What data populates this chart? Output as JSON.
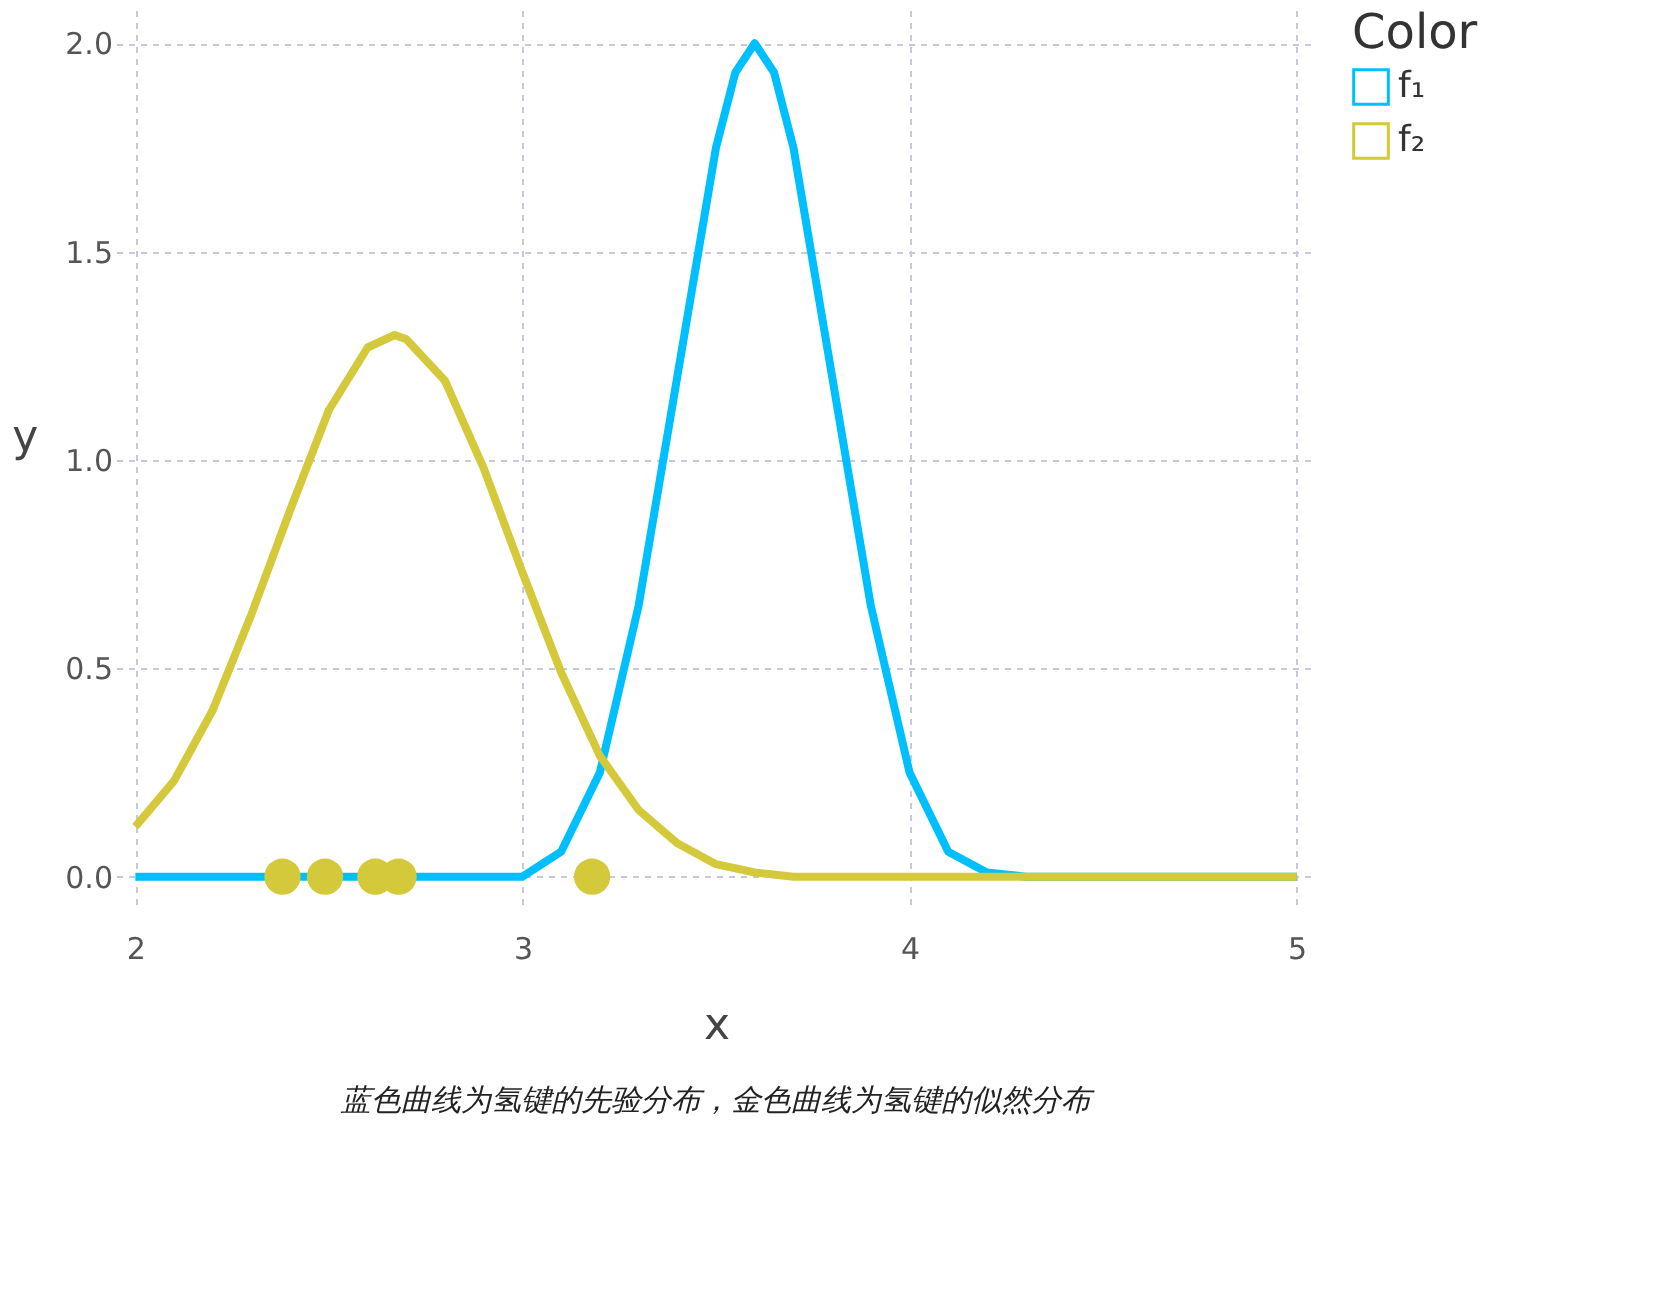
{
  "chart_data": {
    "type": "line",
    "xlabel": "x",
    "ylabel": "y",
    "legend_title": "Color",
    "legend": "right",
    "grid": true,
    "xlim": [
      1.95,
      5.05
    ],
    "xticks": [
      2,
      3,
      4,
      5
    ],
    "ylim": [
      -0.08,
      2.08
    ],
    "yticks": [
      {
        "value": 0,
        "label": "0.0"
      },
      {
        "value": 0.5,
        "label": "0.5"
      },
      {
        "value": 1,
        "label": "1.0"
      },
      {
        "value": 1.5,
        "label": "1.5"
      },
      {
        "value": 2,
        "label": "2.0"
      }
    ],
    "annotations": [
      "蓝色曲线为氢键的先验分布，金色曲线为氢键的似然分布"
    ],
    "series": [
      {
        "name": "f₁",
        "color": "#00bfff",
        "x": [
          2.0,
          2.5,
          3.0,
          3.1,
          3.2,
          3.3,
          3.4,
          3.5,
          3.55,
          3.6,
          3.65,
          3.7,
          3.8,
          3.9,
          4.0,
          4.1,
          4.2,
          4.3,
          4.5,
          5.0
        ],
        "values": [
          0,
          0,
          0,
          0.06,
          0.25,
          0.65,
          1.2,
          1.75,
          1.93,
          2.0,
          1.93,
          1.75,
          1.2,
          0.65,
          0.25,
          0.06,
          0.01,
          0,
          0,
          0
        ]
      },
      {
        "name": "f₂",
        "color": "#d4c93a",
        "x": [
          2.0,
          2.1,
          2.2,
          2.3,
          2.4,
          2.5,
          2.6,
          2.67,
          2.7,
          2.8,
          2.9,
          3.0,
          3.1,
          3.2,
          3.3,
          3.4,
          3.5,
          3.6,
          3.7,
          4.0,
          5.0
        ],
        "values": [
          0.12,
          0.23,
          0.4,
          0.63,
          0.88,
          1.12,
          1.27,
          1.3,
          1.29,
          1.19,
          0.98,
          0.73,
          0.49,
          0.29,
          0.16,
          0.08,
          0.03,
          0.01,
          0,
          0,
          0
        ]
      },
      {
        "type": "scatter",
        "color": "#d4c93a",
        "x": [
          2.38,
          2.49,
          2.62,
          2.68,
          3.18
        ],
        "values": [
          0,
          0,
          0,
          0,
          0
        ]
      }
    ]
  }
}
